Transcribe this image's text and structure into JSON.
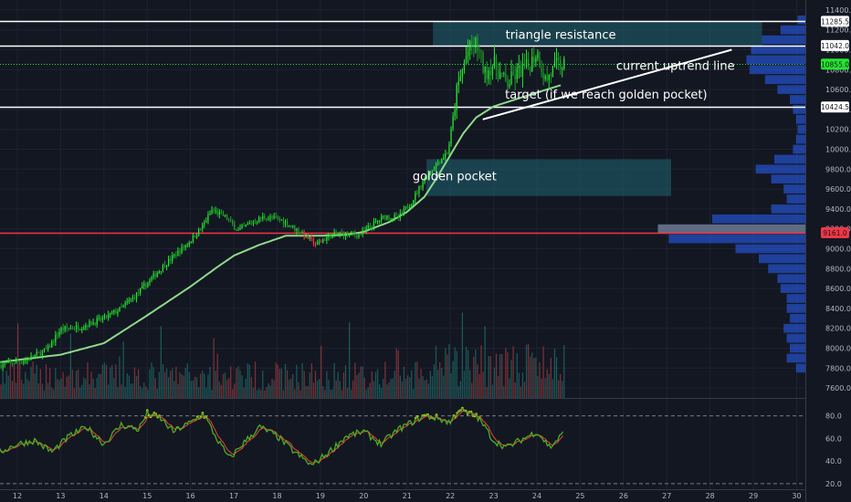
{
  "chart_data": {
    "type": "candlestick",
    "price_axis": {
      "ticks": [
        "11400.0",
        "11200.0",
        "11000.0",
        "10800.0",
        "10600.0",
        "10400.0",
        "10200.0",
        "10000.0",
        "9800.0",
        "9600.0",
        "9400.0",
        "9200.0",
        "9000.0",
        "8800.0",
        "8600.0",
        "8400.0",
        "8200.0",
        "8000.0",
        "7800.0",
        "7600.0"
      ],
      "ylim": [
        7500,
        11500
      ]
    },
    "x_axis": {
      "ticks": [
        "12",
        "13",
        "14",
        "15",
        "16",
        "17",
        "18",
        "19",
        "20",
        "21",
        "22",
        "23",
        "24",
        "25",
        "26",
        "27",
        "28",
        "29",
        "30"
      ],
      "xlim": [
        11.6,
        30.2
      ]
    },
    "price_labels": [
      {
        "text": "11285.5",
        "value": 11285.5,
        "color": "#ffffff"
      },
      {
        "text": "11042.0",
        "value": 11042,
        "color": "#ffffff"
      },
      {
        "text": "10855.0",
        "value": 10855,
        "color": "#26e62f"
      },
      {
        "text": "10424.5",
        "value": 10424.5,
        "color": "#ffffff"
      },
      {
        "text": "9161.0",
        "value": 9161,
        "color": "#f23645"
      }
    ],
    "horizontal_lines": [
      {
        "value": 11285.5,
        "color": "#ffffff",
        "style": "solid"
      },
      {
        "value": 11042,
        "color": "#ffffff",
        "style": "solid"
      },
      {
        "value": 10855,
        "color": "#26e62f",
        "style": "dotted"
      },
      {
        "value": 10424.5,
        "color": "#ffffff",
        "style": "solid"
      },
      {
        "value": 9161,
        "color": "#f23645",
        "style": "solid"
      }
    ],
    "zones": [
      {
        "x0": 21.6,
        "x1": 29.2,
        "y0": 11042,
        "y1": 11285.5,
        "color": "#1e5d6b"
      },
      {
        "x0": 21.45,
        "x1": 27.1,
        "y0": 9530,
        "y1": 9900,
        "color": "#1e5d6b"
      }
    ],
    "trend_line": {
      "x0": 22.75,
      "y0": 10300,
      "x1": 28.5,
      "y1": 11000,
      "color": "#ffffff"
    },
    "moving_average": {
      "color": "#8fd88a",
      "points": [
        [
          11.6,
          7860
        ],
        [
          13,
          7935
        ],
        [
          14,
          8050
        ],
        [
          15,
          8330
        ],
        [
          16,
          8620
        ],
        [
          16.6,
          8810
        ],
        [
          17,
          8930
        ],
        [
          17.6,
          9040
        ],
        [
          18.2,
          9130
        ],
        [
          19,
          9130
        ],
        [
          19.6,
          9140
        ],
        [
          20,
          9170
        ],
        [
          20.6,
          9270
        ],
        [
          21,
          9370
        ],
        [
          21.4,
          9520
        ],
        [
          21.7,
          9720
        ],
        [
          22,
          9940
        ],
        [
          22.3,
          10160
        ],
        [
          22.6,
          10320
        ],
        [
          23,
          10430
        ],
        [
          23.5,
          10500
        ],
        [
          24,
          10570
        ],
        [
          24.6,
          10650
        ]
      ]
    },
    "price_path": {
      "points": [
        [
          11.6,
          7830
        ],
        [
          12.2,
          7880
        ],
        [
          12.7,
          7990
        ],
        [
          13,
          8190
        ],
        [
          13.5,
          8220
        ],
        [
          14,
          8300
        ],
        [
          14.4,
          8400
        ],
        [
          14.8,
          8560
        ],
        [
          15.1,
          8700
        ],
        [
          15.4,
          8840
        ],
        [
          15.7,
          8960
        ],
        [
          16,
          9080
        ],
        [
          16.3,
          9240
        ],
        [
          16.5,
          9390
        ],
        [
          16.8,
          9320
        ],
        [
          17.1,
          9180
        ],
        [
          17.4,
          9260
        ],
        [
          17.7,
          9320
        ],
        [
          18.1,
          9290
        ],
        [
          18.6,
          9150
        ],
        [
          18.9,
          9040
        ],
        [
          19.2,
          9130
        ],
        [
          19.5,
          9150
        ],
        [
          19.9,
          9140
        ],
        [
          20.2,
          9240
        ],
        [
          20.5,
          9330
        ],
        [
          20.8,
          9310
        ],
        [
          21.1,
          9470
        ],
        [
          21.4,
          9700
        ],
        [
          21.7,
          9860
        ],
        [
          21.95,
          9980
        ],
        [
          22.15,
          10580
        ],
        [
          22.4,
          10990
        ],
        [
          22.6,
          11060
        ],
        [
          22.8,
          10760
        ],
        [
          23,
          10860
        ],
        [
          23.3,
          10650
        ],
        [
          23.6,
          10790
        ],
        [
          23.8,
          10830
        ],
        [
          24,
          10980
        ],
        [
          24.2,
          10690
        ],
        [
          24.45,
          10840
        ],
        [
          24.65,
          10850
        ]
      ]
    },
    "annotations": [
      {
        "text": "triangle resistance",
        "x": 24.55,
        "y": 11140
      },
      {
        "text": "current uptrend line",
        "x": 27.2,
        "y": 10830
      },
      {
        "text": "target (if we reach golden pocket)",
        "x": 25.6,
        "y": 10540
      },
      {
        "text": "golden pocket",
        "x": 22.1,
        "y": 9720
      }
    ],
    "volume_profile": {
      "color": "#2962ff",
      "highlight": "#6f7a96",
      "levels": [
        {
          "price": 11300,
          "width": 0.05
        },
        {
          "price": 11200,
          "width": 0.16
        },
        {
          "price": 11100,
          "width": 0.28
        },
        {
          "price": 11000,
          "width": 0.35
        },
        {
          "price": 10900,
          "width": 0.38
        },
        {
          "price": 10800,
          "width": 0.36
        },
        {
          "price": 10700,
          "width": 0.26
        },
        {
          "price": 10600,
          "width": 0.18
        },
        {
          "price": 10500,
          "width": 0.1
        },
        {
          "price": 10400,
          "width": 0.08
        },
        {
          "price": 10300,
          "width": 0.06
        },
        {
          "price": 10200,
          "width": 0.05
        },
        {
          "price": 10100,
          "width": 0.06
        },
        {
          "price": 10000,
          "width": 0.08
        },
        {
          "price": 9900,
          "width": 0.2
        },
        {
          "price": 9800,
          "width": 0.32
        },
        {
          "price": 9700,
          "width": 0.22
        },
        {
          "price": 9600,
          "width": 0.14
        },
        {
          "price": 9500,
          "width": 0.12
        },
        {
          "price": 9400,
          "width": 0.22
        },
        {
          "price": 9300,
          "width": 0.6
        },
        {
          "price": 9200,
          "width": 0.95
        },
        {
          "price": 9100,
          "width": 0.88
        },
        {
          "price": 9000,
          "width": 0.45
        },
        {
          "price": 8900,
          "width": 0.3
        },
        {
          "price": 8800,
          "width": 0.24
        },
        {
          "price": 8700,
          "width": 0.18
        },
        {
          "price": 8600,
          "width": 0.16
        },
        {
          "price": 8500,
          "width": 0.12
        },
        {
          "price": 8400,
          "width": 0.12
        },
        {
          "price": 8300,
          "width": 0.1
        },
        {
          "price": 8200,
          "width": 0.14
        },
        {
          "price": 8100,
          "width": 0.12
        },
        {
          "price": 8000,
          "width": 0.1
        },
        {
          "price": 7900,
          "width": 0.12
        },
        {
          "price": 7800,
          "width": 0.06
        }
      ]
    },
    "oscillator": {
      "ticks": [
        "80.0",
        "60.0",
        "40.0",
        "20.0"
      ],
      "ylim": [
        15,
        95
      ],
      "bands": [
        80,
        20
      ],
      "line_color": "#4caf1f",
      "signal_color": "#e8463a",
      "overbought_color": "#f0e130",
      "points": [
        [
          11.6,
          48
        ],
        [
          12,
          55
        ],
        [
          12.4,
          58
        ],
        [
          12.8,
          48
        ],
        [
          13.2,
          62
        ],
        [
          13.6,
          70
        ],
        [
          14,
          55
        ],
        [
          14.4,
          72
        ],
        [
          14.8,
          68
        ],
        [
          15,
          82
        ],
        [
          15.3,
          78
        ],
        [
          15.6,
          66
        ],
        [
          16,
          74
        ],
        [
          16.3,
          82
        ],
        [
          16.6,
          60
        ],
        [
          16.9,
          42
        ],
        [
          17.2,
          55
        ],
        [
          17.6,
          70
        ],
        [
          18,
          62
        ],
        [
          18.4,
          48
        ],
        [
          18.8,
          36
        ],
        [
          19.2,
          48
        ],
        [
          19.6,
          62
        ],
        [
          20,
          66
        ],
        [
          20.4,
          55
        ],
        [
          20.8,
          68
        ],
        [
          21.1,
          74
        ],
        [
          21.4,
          80
        ],
        [
          21.7,
          78
        ],
        [
          22,
          74
        ],
        [
          22.2,
          86
        ],
        [
          22.4,
          82
        ],
        [
          22.6,
          80
        ],
        [
          22.8,
          70
        ],
        [
          23,
          58
        ],
        [
          23.3,
          52
        ],
        [
          23.6,
          58
        ],
        [
          24,
          66
        ],
        [
          24.3,
          52
        ],
        [
          24.6,
          64
        ]
      ]
    }
  }
}
